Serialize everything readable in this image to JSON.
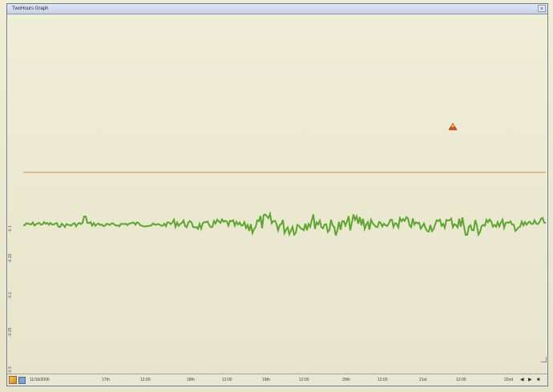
{
  "window": {
    "title": "TwoHours Graph",
    "close_label": "×"
  },
  "plot": {
    "trend_color": "#5aa62e",
    "limit_line_color": "#d98a3a",
    "y_tick_labels": [
      "-0.1",
      "-0.15",
      "-0.2",
      "-0.25",
      "-0.3"
    ]
  },
  "x_axis": {
    "tick_labels": [
      "11/16/2006",
      "17th",
      "12:00",
      "18th",
      "12:00",
      "19th",
      "12:00",
      "20th",
      "12:00",
      "21st",
      "12:00",
      "22nd"
    ]
  },
  "status_bar": {
    "nav_prev": "◀",
    "nav_next": "▶",
    "nav_end": "■"
  },
  "icons": {
    "app_icon": "graph-app-icon",
    "marker": "warning-marker-icon",
    "close": "close-icon"
  }
}
